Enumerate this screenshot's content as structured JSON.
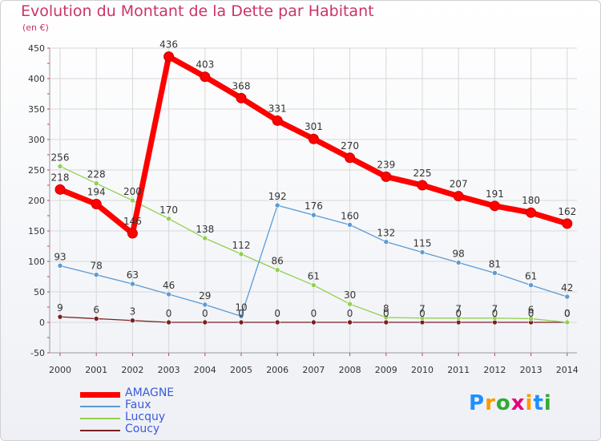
{
  "chart_data": {
    "type": "line",
    "title": "Evolution du Montant de la Dette par Habitant",
    "unit_label": "(en €)",
    "x": [
      "2000",
      "2001",
      "2002",
      "2003",
      "2004",
      "2005",
      "2006",
      "2007",
      "2008",
      "2009",
      "2010",
      "2011",
      "2012",
      "2013",
      "2014"
    ],
    "y_ticks": [
      "450",
      "400",
      "350",
      "300",
      "250",
      "200",
      "150",
      "100",
      "50",
      "0",
      "-50"
    ],
    "ylim": [
      -50,
      450
    ],
    "grid": true,
    "legend_position": "bottom-left",
    "series": [
      {
        "name": "AMAGNE",
        "color": "#ff0000",
        "values": [
          218,
          194,
          146,
          436,
          403,
          368,
          331,
          301,
          270,
          239,
          225,
          207,
          191,
          180,
          162
        ],
        "labels": [
          "218",
          "194",
          "146",
          "436",
          "403",
          "368",
          "331",
          "301",
          "270",
          "239",
          "225",
          "207",
          "191",
          "180",
          "162"
        ]
      },
      {
        "name": "Faux",
        "color": "#5b9bd5",
        "values": [
          93,
          78,
          63,
          46,
          29,
          10,
          192,
          176,
          160,
          132,
          115,
          98,
          81,
          61,
          42
        ],
        "labels": [
          "93",
          "78",
          "63",
          "46",
          "29",
          "10",
          "192",
          "176",
          "160",
          "132",
          "115",
          "98",
          "81",
          "61",
          "42"
        ]
      },
      {
        "name": "Lucquy",
        "color": "#92d050",
        "values": [
          256,
          228,
          200,
          170,
          138,
          112,
          86,
          61,
          30,
          8,
          7,
          7,
          7,
          6,
          0
        ],
        "labels": [
          "256",
          "228",
          "200",
          "170",
          "138",
          "112",
          "86",
          "61",
          "30",
          "8",
          "7",
          "7",
          "7",
          "6",
          "0"
        ]
      },
      {
        "name": "Coucy",
        "color": "#7b1f1f",
        "values": [
          9,
          6,
          3,
          0,
          0,
          0,
          0,
          0,
          0,
          0,
          0,
          0,
          0,
          0,
          0
        ],
        "labels": [
          "9",
          "6",
          "3",
          "0",
          "0",
          "0",
          "0",
          "0",
          "0",
          "0",
          "0",
          "0",
          "0",
          "0",
          "0"
        ]
      }
    ]
  },
  "logo": {
    "text": "Proxiti",
    "letters": [
      "P",
      "r",
      "o",
      "x",
      "i",
      "t",
      "i"
    ],
    "colors": [
      "#1e90ff",
      "#ff9900",
      "#33aa33",
      "#e6007e",
      "#ff9900",
      "#1e90ff",
      "#33aa33"
    ]
  }
}
